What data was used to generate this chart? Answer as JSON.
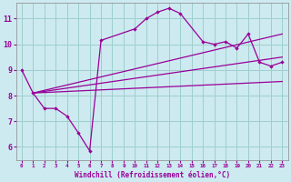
{
  "xlabel": "Windchill (Refroidissement éolien,°C)",
  "bg_color": "#cdeaf0",
  "grid_color": "#9ecfcc",
  "line_color": "#990099",
  "xlim": [
    -0.5,
    23.5
  ],
  "ylim": [
    5.5,
    11.6
  ],
  "yticks": [
    6,
    7,
    8,
    9,
    10,
    11
  ],
  "xticks": [
    0,
    1,
    2,
    3,
    4,
    5,
    6,
    7,
    8,
    9,
    10,
    11,
    12,
    13,
    14,
    15,
    16,
    17,
    18,
    19,
    20,
    21,
    22,
    23
  ],
  "line1_x": [
    0,
    1,
    2,
    3,
    4,
    5,
    6,
    7,
    10,
    11,
    12,
    13,
    14,
    16,
    17,
    18,
    19,
    20,
    21,
    22,
    23
  ],
  "line1_y": [
    9.0,
    8.1,
    7.5,
    7.5,
    7.2,
    6.55,
    5.85,
    10.15,
    10.6,
    11.0,
    11.25,
    11.4,
    11.2,
    10.1,
    10.0,
    10.1,
    9.85,
    10.4,
    9.3,
    9.15,
    9.3
  ],
  "line2_x": [
    1,
    23
  ],
  "line2_y": [
    8.1,
    10.4
  ],
  "line3_x": [
    1,
    23
  ],
  "line3_y": [
    8.1,
    9.5
  ],
  "line4_x": [
    1,
    23
  ],
  "line4_y": [
    8.1,
    8.55
  ]
}
